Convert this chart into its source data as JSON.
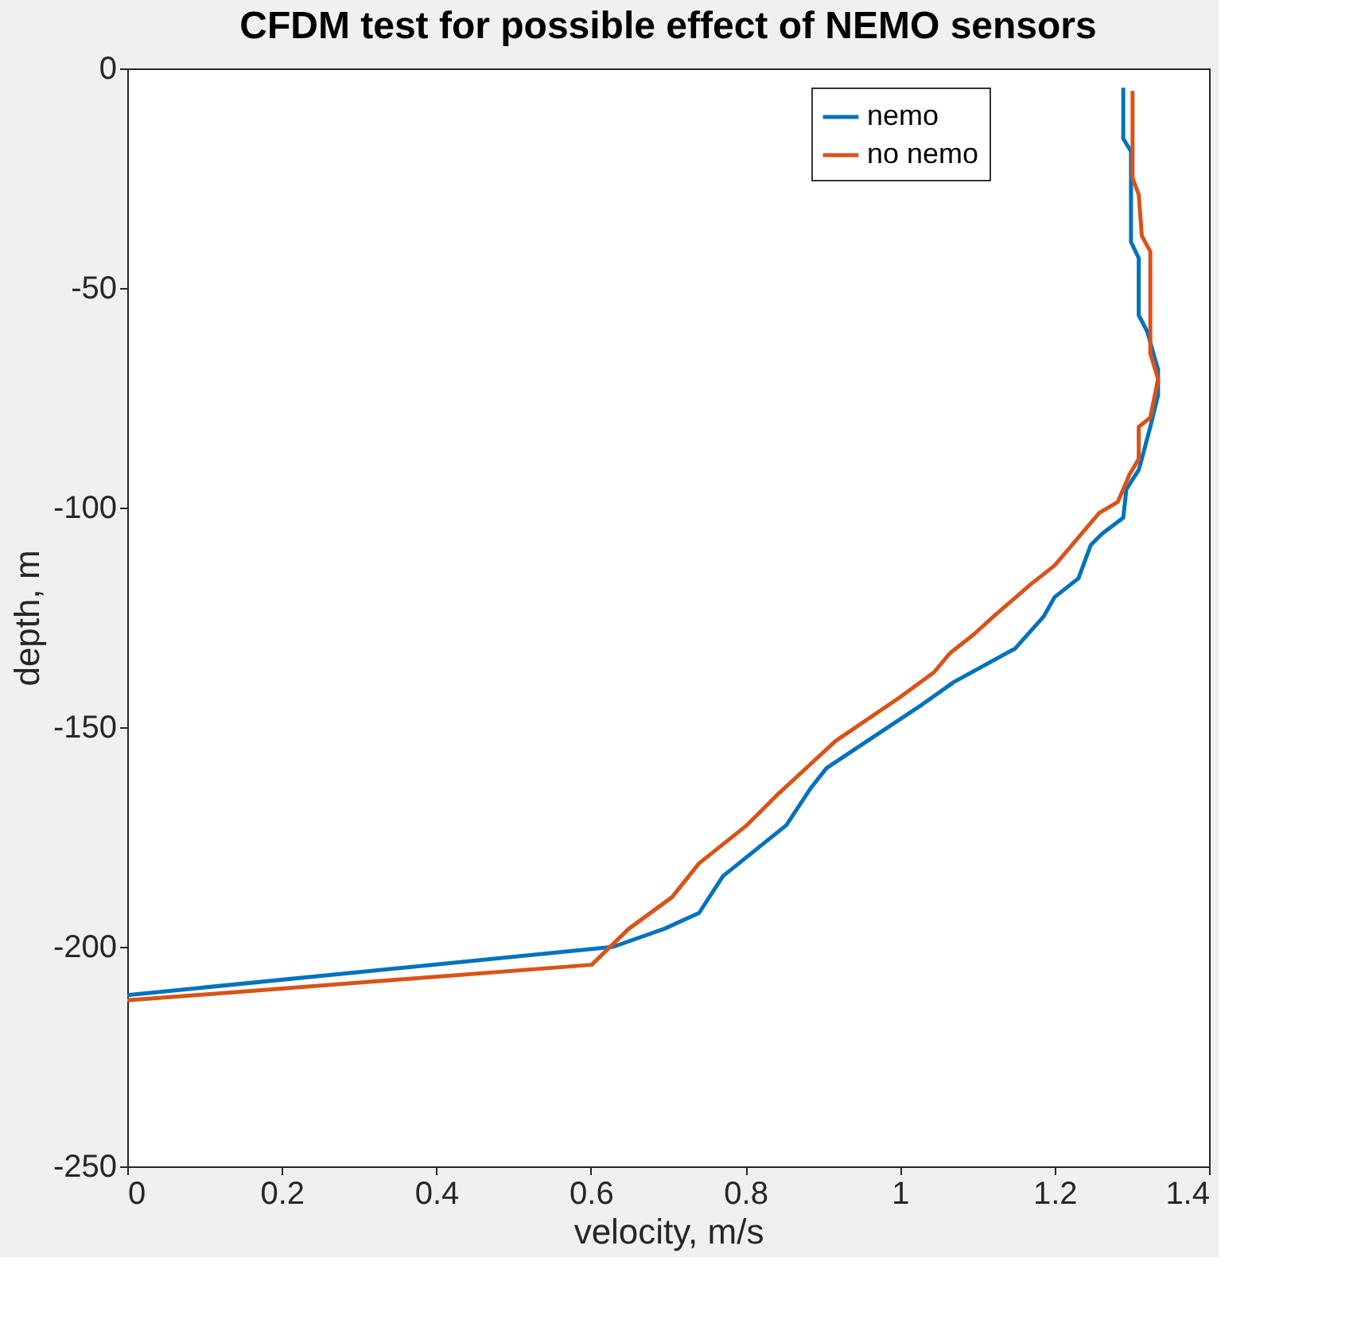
{
  "chart_data": {
    "type": "line",
    "title": "CFDM test for possible effect of NEMO sensors",
    "xlabel": "velocity, m/s",
    "ylabel": "depth, m",
    "xlim": [
      0,
      1.4
    ],
    "xticks": [
      0,
      0.2,
      0.4,
      0.6,
      0.8,
      1,
      1.2,
      1.4
    ],
    "ylim": [
      -250,
      0
    ],
    "yticks": [
      -250,
      -200,
      -150,
      -100,
      -50,
      0
    ],
    "grid": false,
    "legend": "top right",
    "line_style": "solid",
    "marker": "none",
    "series": [
      {
        "name": "nemo",
        "color": "#0072bd",
        "x": [
          1.289,
          1.289,
          1.299,
          1.299,
          1.309,
          1.309,
          1.32,
          1.334,
          1.334,
          1.324,
          1.313,
          1.309,
          1.293,
          1.289,
          1.262,
          1.247,
          1.231,
          1.2,
          1.186,
          1.149,
          1.07,
          1.029,
          0.905,
          0.884,
          0.853,
          0.771,
          0.74,
          0.695,
          0.629,
          0
        ],
        "values": [
          -4.4,
          -16,
          -18.9,
          -39.5,
          -43.2,
          -56.2,
          -59.9,
          -68.6,
          -74.4,
          -81.6,
          -88.9,
          -91.4,
          -95.8,
          -102.3,
          -105.9,
          -108.5,
          -116.1,
          -120.4,
          -124.8,
          -132.1,
          -139.7,
          -144.8,
          -159.3,
          -164,
          -172.3,
          -183.9,
          -192.3,
          -195.9,
          -200,
          -211
        ]
      },
      {
        "name": "no nemo",
        "color": "#d95319",
        "x": [
          1.301,
          1.301,
          1.309,
          1.313,
          1.324,
          1.324,
          1.334,
          1.324,
          1.309,
          1.309,
          1.297,
          1.282,
          1.258,
          1.2,
          1.169,
          1.121,
          1.096,
          1.065,
          1.044,
          0.999,
          0.917,
          0.843,
          0.802,
          0.74,
          0.705,
          0.649,
          0.601,
          0
        ],
        "values": [
          -5.1,
          -25,
          -28.7,
          -38.1,
          -41.7,
          -64.9,
          -70.7,
          -79.5,
          -81.6,
          -88.9,
          -92.5,
          -98.7,
          -101.2,
          -113.2,
          -117.5,
          -124.8,
          -128.8,
          -133.1,
          -137.5,
          -143.3,
          -153.1,
          -165.1,
          -172.3,
          -181,
          -188.7,
          -195.9,
          -204.1,
          -212.2
        ]
      }
    ]
  }
}
